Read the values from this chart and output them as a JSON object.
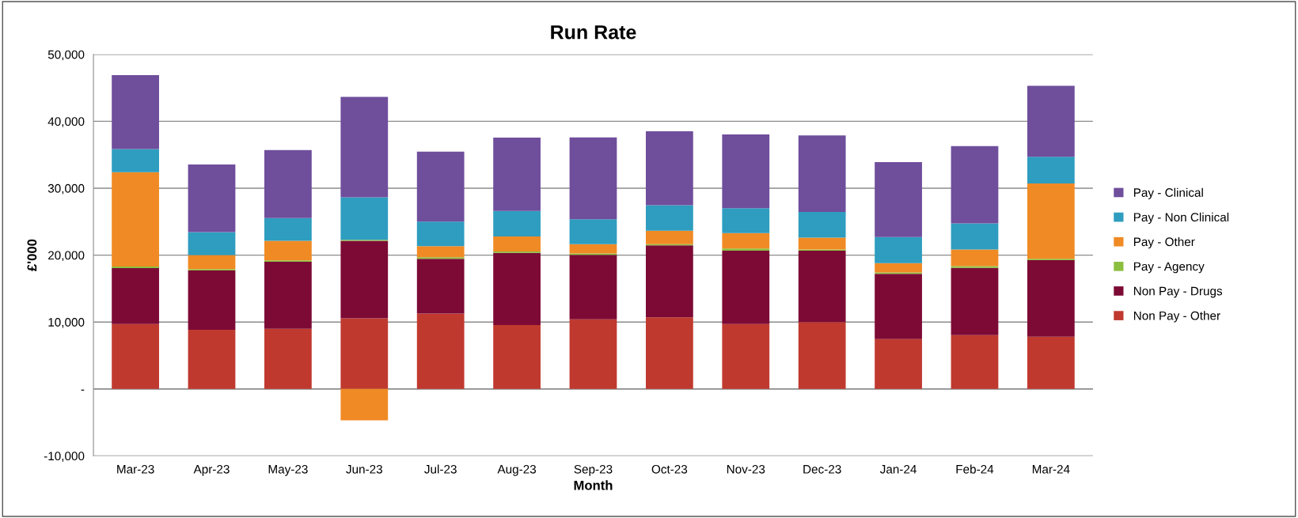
{
  "chart_data": {
    "type": "bar",
    "title": "Run Rate",
    "xlabel": "Month",
    "ylabel": "£'000",
    "stacked": true,
    "categories": [
      "Mar-23",
      "Apr-23",
      "May-23",
      "Jun-23",
      "Jul-23",
      "Aug-23",
      "Sep-23",
      "Oct-23",
      "Nov-23",
      "Dec-23",
      "Jan-24",
      "Feb-24",
      "Mar-24"
    ],
    "series": [
      {
        "name": "Non Pay - Other",
        "color": "#c0392f",
        "values": [
          9700,
          8850,
          9000,
          10550,
          11250,
          9550,
          10400,
          10700,
          9700,
          10000,
          7450,
          8050,
          7800
        ]
      },
      {
        "name": "Non Pay - Drugs",
        "color": "#7d0a35",
        "values": [
          8350,
          8850,
          10000,
          11600,
          8200,
          10800,
          9650,
          10750,
          10950,
          10650,
          9750,
          10050,
          11450
        ]
      },
      {
        "name": "Pay - Agency",
        "color": "#8cbf3f",
        "values": [
          250,
          200,
          200,
          150,
          250,
          200,
          200,
          200,
          350,
          200,
          200,
          250,
          200
        ]
      },
      {
        "name": "Pay - Other",
        "color": "#f08a24",
        "values": [
          14100,
          2100,
          2950,
          -4700,
          1650,
          2250,
          1400,
          2000,
          2300,
          1750,
          1400,
          2500,
          11250
        ]
      },
      {
        "name": "Pay - Non Clinical",
        "color": "#2e9dbf",
        "values": [
          3450,
          3450,
          3400,
          6350,
          3650,
          3800,
          3700,
          3800,
          3700,
          3850,
          3900,
          3900,
          4000
        ]
      },
      {
        "name": "Pay - Clinical",
        "color": "#6f4e9c",
        "values": [
          11050,
          10100,
          10150,
          15000,
          10450,
          10950,
          12250,
          11050,
          11050,
          11450,
          11200,
          11550,
          10600
        ]
      }
    ],
    "ylim": [
      -10000,
      50000
    ],
    "yticks": [
      {
        "value": -10000,
        "label": "-10,000"
      },
      {
        "value": 0,
        "label": "-"
      },
      {
        "value": 10000,
        "label": "10,000"
      },
      {
        "value": 20000,
        "label": "20,000"
      },
      {
        "value": 30000,
        "label": "30,000"
      },
      {
        "value": 40000,
        "label": "40,000"
      },
      {
        "value": 50000,
        "label": "50,000"
      }
    ],
    "grid": "y",
    "legend": "right"
  }
}
